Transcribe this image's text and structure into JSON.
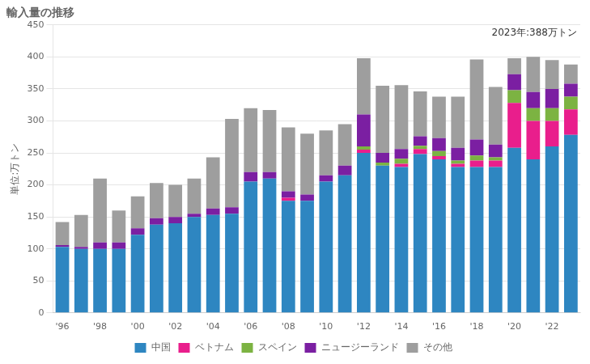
{
  "chart_data": {
    "type": "bar",
    "title": "輸入量の推移",
    "ylabel": "単位:万トン",
    "annotation": "2023年:388万トン",
    "stacked": true,
    "grid": true,
    "legend": "bottom",
    "categories": [
      "'96",
      null,
      "'98",
      null,
      "'00",
      null,
      "'02",
      null,
      "'04",
      null,
      "'06",
      null,
      "'08",
      null,
      "'10",
      null,
      "'12",
      null,
      "'14",
      null,
      "'16",
      null,
      "'18",
      null,
      "'20",
      null,
      "'22",
      null
    ],
    "series": [
      {
        "name": "中国",
        "color": "#2E86C1",
        "values": [
          103,
          100,
          100,
          100,
          122,
          138,
          140,
          150,
          153,
          155,
          205,
          210,
          175,
          175,
          205,
          215,
          250,
          230,
          228,
          248,
          240,
          228,
          228,
          228,
          258,
          240,
          260,
          278
        ]
      },
      {
        "name": "ベトナム",
        "color": "#E91E8C",
        "values": [
          0,
          0,
          0,
          0,
          0,
          0,
          0,
          0,
          0,
          0,
          0,
          0,
          5,
          0,
          0,
          0,
          5,
          0,
          5,
          8,
          5,
          5,
          10,
          10,
          70,
          60,
          40,
          40
        ]
      },
      {
        "name": "スペイン",
        "color": "#7CB342",
        "values": [
          0,
          0,
          0,
          0,
          0,
          0,
          0,
          0,
          0,
          0,
          0,
          0,
          0,
          0,
          0,
          0,
          5,
          5,
          8,
          5,
          8,
          5,
          8,
          5,
          20,
          20,
          20,
          20
        ]
      },
      {
        "name": "ニュージーランド",
        "color": "#7B1FA2",
        "values": [
          3,
          3,
          10,
          10,
          10,
          10,
          10,
          5,
          10,
          10,
          15,
          10,
          10,
          10,
          10,
          15,
          50,
          15,
          15,
          15,
          20,
          20,
          25,
          20,
          25,
          25,
          30,
          20
        ]
      },
      {
        "name": "その他",
        "color": "#9E9E9E",
        "values": [
          36,
          50,
          100,
          50,
          50,
          55,
          50,
          55,
          80,
          138,
          100,
          97,
          100,
          95,
          70,
          65,
          88,
          105,
          100,
          70,
          65,
          80,
          125,
          90,
          25,
          55,
          45,
          30
        ]
      }
    ],
    "ylim": [
      0,
      450
    ],
    "yticks": [
      0,
      50,
      100,
      150,
      200,
      250,
      300,
      350,
      400,
      450
    ]
  }
}
